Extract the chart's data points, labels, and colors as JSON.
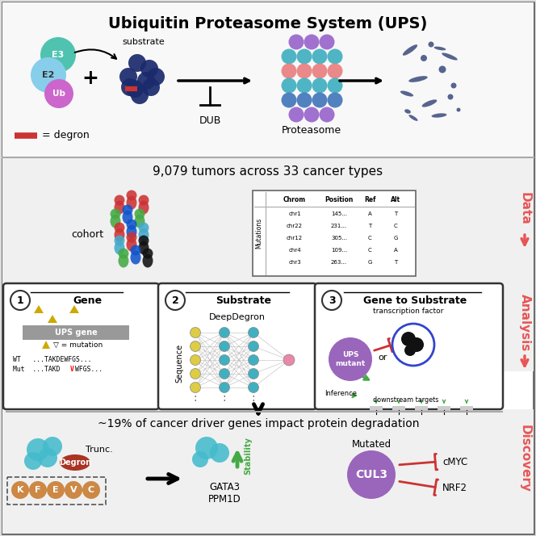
{
  "title": "Ubiquitin Proteasome System (UPS)",
  "top_section_text": {
    "E3": "E3",
    "E2": "E2",
    "Ub": "Ub",
    "substrate": "substrate",
    "DUB": "DUB",
    "Proteasome": "Proteasome",
    "degron": "= degron"
  },
  "middle_text": "9,079 tumors across 33 cancer types",
  "cohort_label": "cohort",
  "table_headers": [
    "Chrom",
    "Position",
    "Ref",
    "Alt"
  ],
  "table_rows": [
    [
      "chr1",
      "145...",
      "A",
      "T"
    ],
    [
      "chr22",
      "231...",
      "T",
      "C"
    ],
    [
      "chr12",
      "305...",
      "C",
      "G"
    ],
    [
      "chr4",
      "109...",
      "C",
      "A"
    ],
    [
      "chr3",
      "263...",
      "G",
      "T"
    ]
  ],
  "mutations_label": "Mutations",
  "box1_num": "1",
  "box1_title": "Gene",
  "box1_gene": "UPS gene",
  "box1_mutation": "▽ = mutation",
  "box1_wt": "WT   ...TAKDEWFGS...",
  "box1_mut_prefix": "Mut  ...TAKD",
  "box1_mut_v": "V",
  "box1_mut_suffix": "WFGS...",
  "box2_num": "2",
  "box2_title": "Substrate",
  "box2_subtitle": "DeepDegron",
  "box2_seq": "Sequence",
  "box3_num": "3",
  "box3_title": "Gene to Substrate",
  "box3_tf": "transcription factor",
  "box3_ups": "UPS\nmutant",
  "box3_or": "or",
  "box3_inf": "Inference",
  "box3_dt": "downstream targets",
  "bottom_text": "~19% of cancer driver genes impact protein degradation",
  "disc_degron": "Degron",
  "disc_trunc": "Trunc.",
  "disc_stability": "Stability",
  "disc_mutated": "Mutated",
  "disc_gata3": "GATA3\nPPM1D",
  "disc_cul3": "CUL3",
  "disc_cmyc": "cMYC",
  "disc_nrf2": "NRF2",
  "disc_kfevc": [
    "K",
    "F",
    "E",
    "V",
    "C"
  ],
  "right_label_color": "#e85555",
  "colors": {
    "E3": "#4fc3b0",
    "E2": "#87ceeb",
    "Ub": "#cc66cc",
    "substrate_dark": "#1a2a6c",
    "proteasome_purple": "#9966cc",
    "proteasome_teal": "#40b0c0",
    "proteasome_pink": "#e88080",
    "proteasome_blue": "#4477bb",
    "degron_red": "#cc3333",
    "gene_box": "#999999",
    "mutation_yellow": "#ccaa00",
    "ups_purple": "#9966bb",
    "nn_node_teal": "#40b0c0",
    "nn_node_yellow": "#ddcc44",
    "nn_node_output": "#e888aa",
    "inhibit_red": "#cc3333",
    "activate_green": "#44aa44",
    "cyan_protein": "#44bbcc",
    "brown_circle": "#cc8844",
    "red_degron_disc": "#aa3322",
    "green_stability": "#44aa44",
    "degraded": "#334477"
  }
}
